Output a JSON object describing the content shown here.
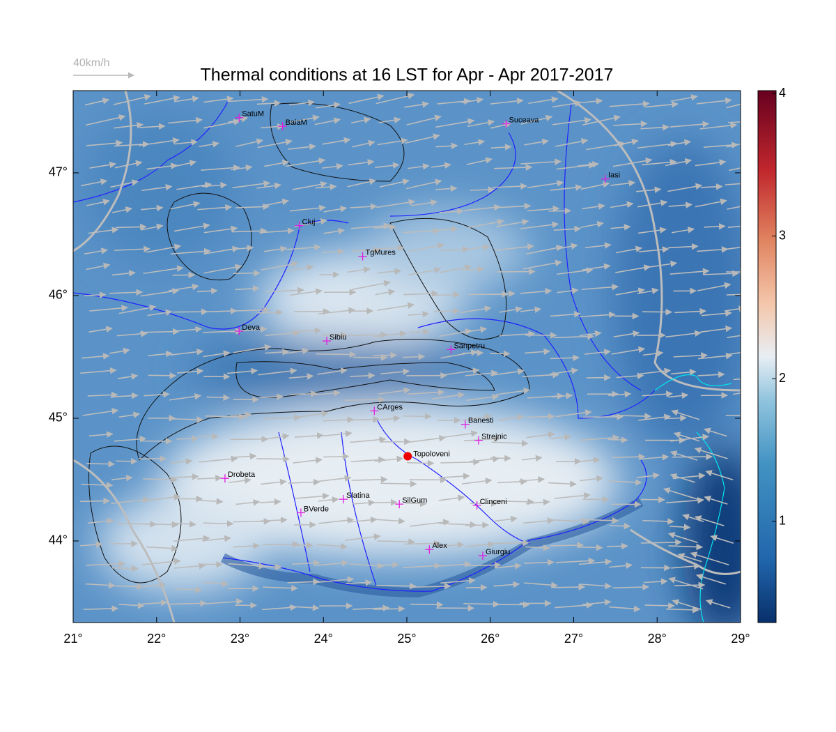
{
  "title": "Thermal conditions at 16 LST for Apr - Apr  2017-2017",
  "wind_legend": "40km/h",
  "map": {
    "xlim": [
      21,
      29
    ],
    "ylim": [
      43.335,
      47.67
    ],
    "xticks": [
      {
        "value": 21,
        "label": "21°"
      },
      {
        "value": 22,
        "label": "22°"
      },
      {
        "value": 23,
        "label": "23°"
      },
      {
        "value": 24,
        "label": "24°"
      },
      {
        "value": 25,
        "label": "25°"
      },
      {
        "value": 26,
        "label": "26°"
      },
      {
        "value": 27,
        "label": "27°"
      },
      {
        "value": 28,
        "label": "28°"
      },
      {
        "value": 29,
        "label": "29°"
      }
    ],
    "yticks": [
      {
        "value": 44,
        "label": "44°"
      },
      {
        "value": 45,
        "label": "45°"
      },
      {
        "value": 46,
        "label": "46°"
      },
      {
        "value": 47,
        "label": "47°"
      }
    ]
  },
  "colorbar": {
    "lim": [
      0.29,
      4.02
    ],
    "ticks": [
      1,
      2,
      3,
      4
    ]
  },
  "cities": [
    {
      "name": "SatuM",
      "lon": 22.99,
      "lat": 47.45
    },
    {
      "name": "BaiaM",
      "lon": 23.51,
      "lat": 47.38
    },
    {
      "name": "Suceava",
      "lon": 26.19,
      "lat": 47.4
    },
    {
      "name": "Iasi",
      "lon": 27.38,
      "lat": 46.95
    },
    {
      "name": "Cluj",
      "lon": 23.71,
      "lat": 46.57
    },
    {
      "name": "TgMures",
      "lon": 24.47,
      "lat": 46.32
    },
    {
      "name": "Deva",
      "lon": 22.99,
      "lat": 45.71
    },
    {
      "name": "Sibiu",
      "lon": 24.04,
      "lat": 45.63
    },
    {
      "name": "Sanpetru",
      "lon": 25.53,
      "lat": 45.56
    },
    {
      "name": "CArges",
      "lon": 24.61,
      "lat": 45.06
    },
    {
      "name": "Banesti",
      "lon": 25.7,
      "lat": 44.95
    },
    {
      "name": "Strejnic",
      "lon": 25.86,
      "lat": 44.82
    },
    {
      "name": "Drobeta",
      "lon": 22.82,
      "lat": 44.51
    },
    {
      "name": "Slatina",
      "lon": 24.24,
      "lat": 44.34
    },
    {
      "name": "SilGum",
      "lon": 24.91,
      "lat": 44.3
    },
    {
      "name": "Clinceni",
      "lon": 25.84,
      "lat": 44.29
    },
    {
      "name": "BVerde",
      "lon": 23.73,
      "lat": 44.23
    },
    {
      "name": "Alex",
      "lon": 25.27,
      "lat": 43.93
    },
    {
      "name": "Giurgiu",
      "lon": 25.91,
      "lat": 43.88
    }
  ],
  "highlight": {
    "name": "Topoloveni",
    "lon": 25.01,
    "lat": 44.69,
    "color": "#ee0000"
  }
}
